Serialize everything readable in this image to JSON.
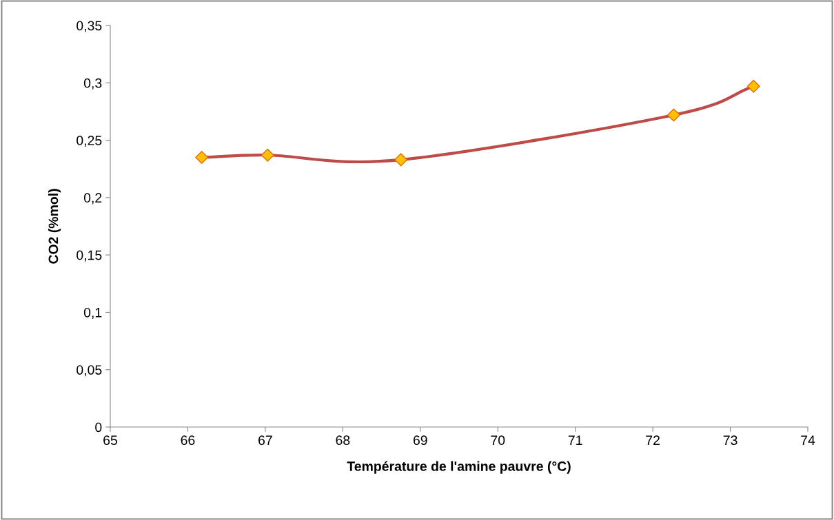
{
  "chart_data": {
    "type": "line",
    "xlabel": "Température de l'amine pauvre (°C)",
    "ylabel": "CO2 (%mol)",
    "x": [
      66.18,
      67.03,
      68.75,
      72.27,
      73.3
    ],
    "series": [
      {
        "color": "#be4b48",
        "values": [
          0.235,
          0.237,
          0.233,
          0.272,
          0.297
        ]
      }
    ],
    "marker": "diamond",
    "line_style": "solid",
    "grid": false,
    "legend": false,
    "xlim": [
      65,
      74
    ],
    "xticks": [
      65,
      66,
      67,
      68,
      69,
      70,
      71,
      72,
      73,
      74
    ],
    "ylim": [
      0,
      0.35
    ],
    "yticks": [
      0,
      {
        "value": 0.05,
        "label": "0,05"
      },
      {
        "value": 0.1,
        "label": "0,1"
      },
      {
        "value": 0.15,
        "label": "0,15"
      },
      {
        "value": 0.2,
        "label": "0,2"
      },
      {
        "value": 0.25,
        "label": "0,25"
      },
      {
        "value": 0.3,
        "label": "0,3"
      },
      {
        "value": 0.35,
        "label": "0,35"
      }
    ]
  }
}
